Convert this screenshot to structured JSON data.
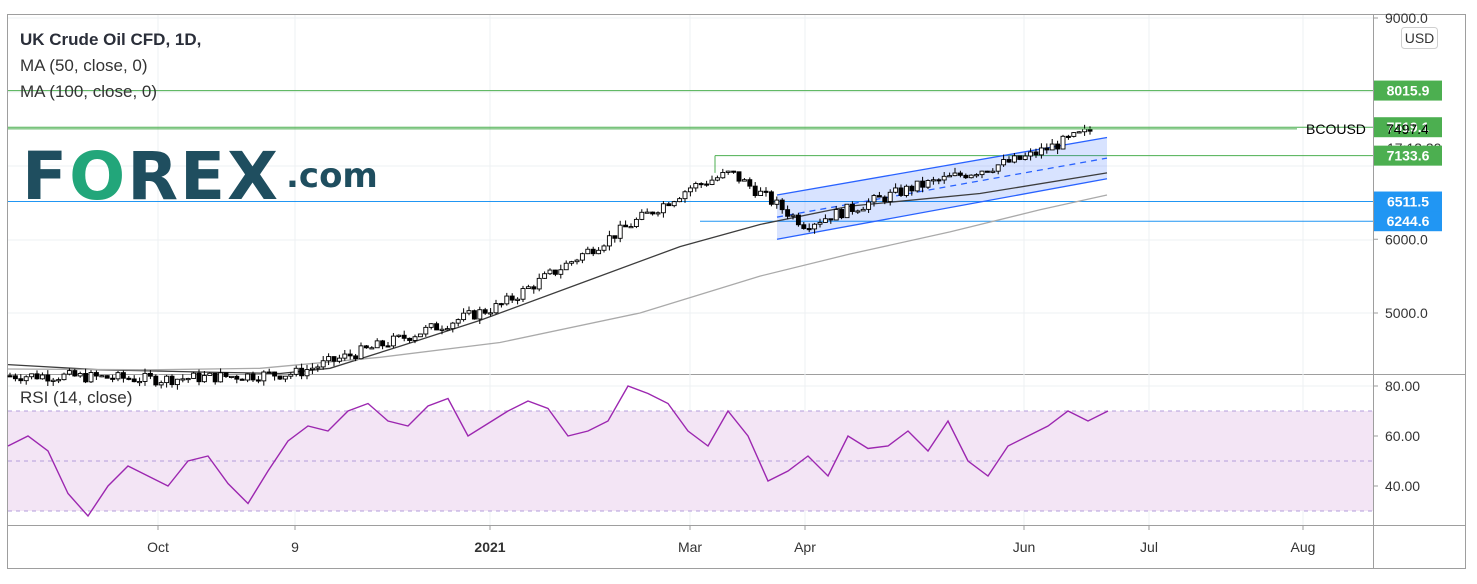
{
  "legend": {
    "title": "UK Crude Oil CFD, 1D,",
    "ma50": "MA (50, close, 0)",
    "ma100": "MA (100, close, 0)",
    "rsi": "RSI (14, close)"
  },
  "logo": {
    "main": "F",
    "o": "O",
    "rest": "REX",
    "suffix": ".com"
  },
  "currency": "USD",
  "symbol": "BCOUSD",
  "countdown": "17:13:39",
  "colors": {
    "up": "#ffffff",
    "down": "#000000",
    "ma50": "#3d3d3d",
    "ma100": "#aaaaaa",
    "rsi": "#9c27b0",
    "rsi_band": "#f3e5f5",
    "green": "#4caf50",
    "blue": "#2196f3",
    "channel": "#2962ff"
  },
  "chart_data": [
    {
      "type": "line",
      "title": "UK Crude Oil CFD, 1D,",
      "x_ticks": [
        "Oct",
        "9",
        "2021",
        "Mar",
        "Apr",
        "Jun",
        "Jul",
        "Aug"
      ],
      "y_ticks": [
        "9000.0",
        "6000.0",
        "5000.0"
      ],
      "ylim": [
        4000,
        9000
      ],
      "series": [
        {
          "name": "MA (50, close, 0)",
          "values": [
            4300,
            4230,
            4200,
            4180,
            4250,
            4550,
            4900,
            5400,
            5900,
            6200,
            6450,
            6620,
            6900
          ]
        },
        {
          "name": "MA (100, close, 0)",
          "values": [
            4240,
            4230,
            4250,
            4400,
            4600,
            5000,
            5500,
            5800,
            6100,
            6400,
            6600
          ]
        }
      ],
      "price_x": [
        "2020-09-01",
        "2020-10-01",
        "2020-11-09",
        "2021-01-04",
        "2021-03-01",
        "2021-03-12",
        "2021-04-01",
        "2021-05-01",
        "2021-06-01",
        "2021-06-18"
      ],
      "price_y": [
        4150,
        4100,
        4180,
        5100,
        6700,
        6900,
        6200,
        6700,
        7100,
        7497
      ],
      "levels": [
        {
          "label": "8015.9",
          "value": 8015.9,
          "color": "green"
        },
        {
          "label": "7519.1",
          "value": 7519.1,
          "color": "green"
        },
        {
          "label": "7497.4",
          "value": 7497.4,
          "color": "last"
        },
        {
          "label": "7133.6",
          "value": 7133.6,
          "color": "green"
        },
        {
          "label": "6511.5",
          "value": 6511.5,
          "color": "blue"
        },
        {
          "label": "6244.6",
          "value": 6244.6,
          "color": "blue"
        }
      ]
    },
    {
      "type": "line",
      "title": "RSI (14, close)",
      "y_ticks": [
        "80.00",
        "60.00",
        "40.00"
      ],
      "ylim": [
        20,
        85
      ],
      "band": [
        30,
        70
      ],
      "series": [
        {
          "name": "RSI (14, close)",
          "values": [
            56,
            60,
            54,
            37,
            28,
            40,
            48,
            44,
            40,
            50,
            52,
            41,
            33,
            46,
            58,
            64,
            62,
            70,
            73,
            66,
            64,
            72,
            75,
            60,
            65,
            70,
            74,
            71,
            60,
            62,
            66,
            80,
            77,
            73,
            62,
            56,
            70,
            60,
            42,
            46,
            52,
            44,
            60,
            55,
            56,
            62,
            54,
            66,
            50,
            44,
            56,
            60,
            64,
            70,
            66,
            70
          ]
        }
      ]
    }
  ]
}
